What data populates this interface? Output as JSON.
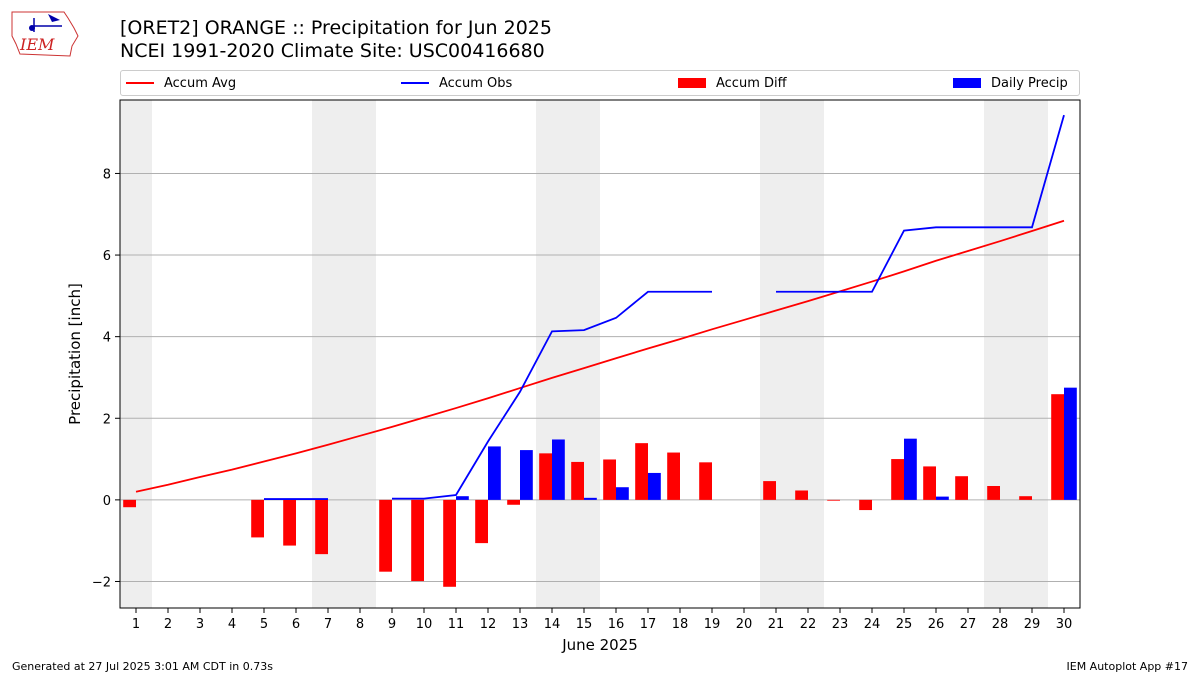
{
  "header": {
    "title_line1": "[ORET2] ORANGE :: Precipitation for Jun 2025",
    "title_line2": "NCEI 1991-2020 Climate Site: USC00416680"
  },
  "logo": {
    "text": "IEM"
  },
  "legend": {
    "accum_avg": "Accum Avg",
    "accum_obs": "Accum Obs",
    "accum_diff": "Accum Diff",
    "daily_precip": "Daily Precip"
  },
  "footer": {
    "left": "Generated at 27 Jul 2025 3:01 AM CDT in 0.73s",
    "right": "IEM Autoplot App #17"
  },
  "colors": {
    "avg": "#ff0000",
    "obs": "#0000ff",
    "diff": "#ff0000",
    "daily": "#0000ff",
    "weekend_shade": "#eeeeee",
    "grid": "#b0b0b0"
  },
  "chart_data": {
    "type": "bar",
    "xlabel": "June 2025",
    "ylabel": "Precipitation [inch]",
    "ylim": [
      -2.65,
      9.8
    ],
    "yticks": [
      -2,
      0,
      2,
      4,
      6,
      8
    ],
    "ytick_labels": [
      "−2",
      "0",
      "2",
      "4",
      "6",
      "8"
    ],
    "grid": "horizontal",
    "legend_position": "top",
    "days": [
      1,
      2,
      3,
      4,
      5,
      6,
      7,
      8,
      9,
      10,
      11,
      12,
      13,
      14,
      15,
      16,
      17,
      18,
      19,
      20,
      21,
      22,
      23,
      24,
      25,
      26,
      27,
      28,
      29,
      30
    ],
    "weekend_days": [
      1,
      7,
      8,
      14,
      15,
      21,
      22,
      28,
      29
    ],
    "series": [
      {
        "name": "Accum Avg",
        "kind": "line",
        "values": [
          0.2,
          0.37,
          0.56,
          0.74,
          0.94,
          1.14,
          1.35,
          1.57,
          1.79,
          2.02,
          2.25,
          2.49,
          2.74,
          2.99,
          3.23,
          3.47,
          3.71,
          3.94,
          4.18,
          4.41,
          4.64,
          4.87,
          5.11,
          5.35,
          5.6,
          5.86,
          6.1,
          6.34,
          6.59,
          6.84
        ]
      },
      {
        "name": "Accum Obs",
        "kind": "line",
        "values": [
          null,
          null,
          null,
          null,
          0.02,
          0.02,
          0.02,
          null,
          0.03,
          0.03,
          0.12,
          1.43,
          2.65,
          4.13,
          4.16,
          4.46,
          5.1,
          5.1,
          5.1,
          null,
          5.1,
          5.1,
          5.1,
          5.1,
          6.6,
          6.68,
          6.68,
          6.68,
          6.68,
          9.43
        ]
      },
      {
        "name": "Accum Diff",
        "kind": "bar",
        "values": [
          -0.18,
          null,
          null,
          null,
          -0.92,
          -1.12,
          -1.33,
          null,
          -1.76,
          -1.99,
          -2.13,
          -1.06,
          -0.12,
          1.14,
          0.93,
          0.99,
          1.39,
          1.16,
          0.92,
          null,
          0.46,
          0.23,
          -0.01,
          -0.25,
          1.0,
          0.82,
          0.58,
          0.34,
          0.09,
          2.59
        ]
      },
      {
        "name": "Daily Precip",
        "kind": "bar",
        "values": [
          null,
          null,
          null,
          null,
          null,
          null,
          null,
          null,
          null,
          null,
          0.09,
          1.31,
          1.22,
          1.48,
          0.05,
          0.31,
          0.66,
          null,
          null,
          null,
          null,
          null,
          null,
          null,
          1.5,
          0.08,
          null,
          null,
          null,
          2.75
        ]
      }
    ]
  }
}
